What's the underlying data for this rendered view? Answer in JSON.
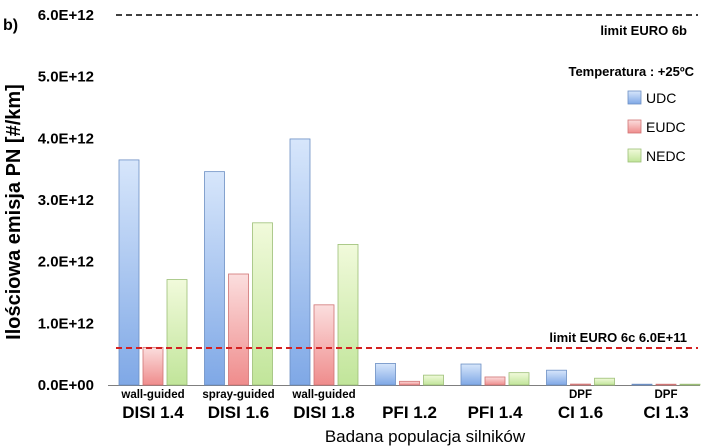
{
  "chart_data": {
    "type": "bar",
    "panel_label": "b)",
    "categories": [
      "DISI 1.4",
      "DISI 1.6",
      "DISI 1.8",
      "PFI 1.2",
      "PFI 1.4",
      "CI 1.6",
      "CI 1.3"
    ],
    "category_notes": [
      "wall-guided",
      "spray-guided",
      "wall-guided",
      "",
      "",
      "DPF",
      "DPF"
    ],
    "series": [
      {
        "name": "UDC",
        "values": [
          3650000000000.0,
          3460000000000.0,
          3990000000000.0,
          350000000000.0,
          340000000000.0,
          240000000000.0,
          10000000000.0
        ]
      },
      {
        "name": "EUDC",
        "values": [
          610000000000.0,
          1800000000000.0,
          1300000000000.0,
          60000000000.0,
          130000000000.0,
          15000000000.0,
          5000000000.0
        ]
      },
      {
        "name": "NEDC",
        "values": [
          1710000000000.0,
          2630000000000.0,
          2280000000000.0,
          160000000000.0,
          200000000000.0,
          110000000000.0,
          8000000000.0
        ]
      }
    ],
    "ylabel": "Ilościowa emisja PN [#/km]",
    "xlabel": "Badana populacja silników",
    "ylim": [
      0,
      6000000000000.0
    ],
    "yticks": [
      "0.0E+00",
      "1.0E+12",
      "2.0E+12",
      "3.0E+12",
      "4.0E+12",
      "5.0E+12",
      "6.0E+12"
    ],
    "reference_lines": [
      {
        "label": "limit EURO 6b",
        "value": 6000000000000.0,
        "color": "#000000"
      },
      {
        "label": "limit EURO 6c 6.0E+11",
        "value": 600000000000.0,
        "color": "#d42020"
      }
    ],
    "annotation": "Temperatura : +25ºC",
    "legend_position": "right",
    "colors": {
      "UDC": [
        "#d7e6fb",
        "#7fa8e6"
      ],
      "EUDC": [
        "#fbdede",
        "#ef8c8c"
      ],
      "NEDC": [
        "#f1fadb",
        "#c1e59a"
      ]
    },
    "edge_colors": {
      "UDC": "#6c8fc4",
      "EUDC": "#d07474",
      "NEDC": "#9cbf76"
    }
  }
}
